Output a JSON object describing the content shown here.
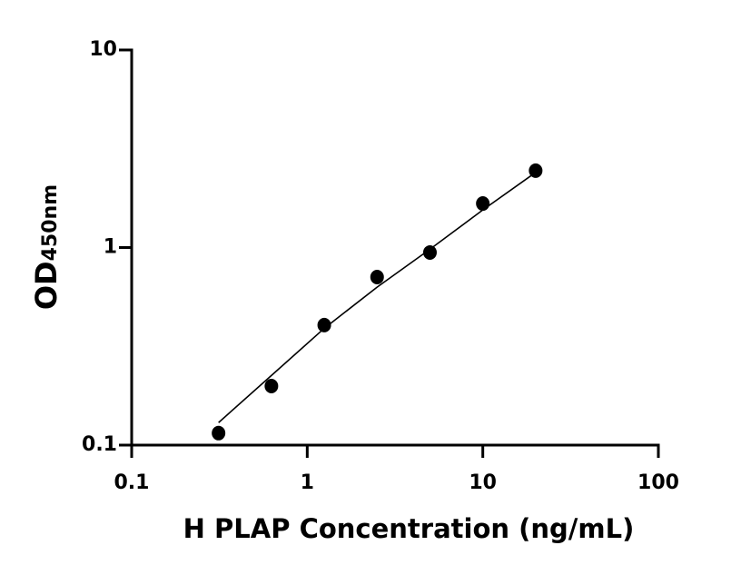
{
  "chart_data": {
    "type": "scatter",
    "xlabel": "H PLAP Concentration (ng/mL)",
    "ylabel": "OD",
    "ylabel_subscript": "450nm",
    "xscale": "log",
    "yscale": "log",
    "xlim": [
      0.1,
      100
    ],
    "ylim": [
      0.1,
      10
    ],
    "xticks": [
      0.1,
      1,
      10,
      100
    ],
    "yticks": [
      0.1,
      1,
      10
    ],
    "grid": false,
    "series": [
      {
        "color": "#000000",
        "x": [
          0.3125,
          0.625,
          1.25,
          2.5,
          5,
          10,
          20
        ],
        "values": [
          0.115,
          0.199,
          0.405,
          0.709,
          0.944,
          1.67,
          2.45
        ]
      }
    ],
    "fit": {
      "color": "#000000",
      "x": [
        0.3125,
        0.625,
        1.25,
        2.5,
        5,
        10,
        20
      ],
      "values": [
        0.13,
        0.225,
        0.39,
        0.63,
        0.98,
        1.55,
        2.4
      ]
    }
  }
}
